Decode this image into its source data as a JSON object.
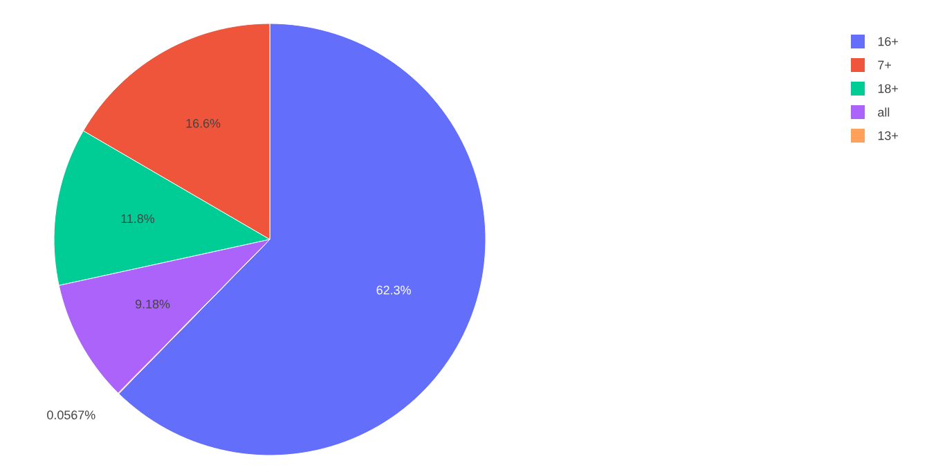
{
  "chart_data": {
    "type": "pie",
    "categories": [
      "16+",
      "7+",
      "18+",
      "all",
      "13+"
    ],
    "values": [
      62.3,
      16.6,
      11.8,
      9.18,
      0.0567
    ],
    "colors": [
      "#636efa",
      "#ef553b",
      "#00cc96",
      "#ab63fa",
      "#ffa15a"
    ],
    "value_labels": [
      "62.3%",
      "16.6%",
      "11.8%",
      "9.18%",
      "0.0567%"
    ],
    "legend": "top right"
  }
}
